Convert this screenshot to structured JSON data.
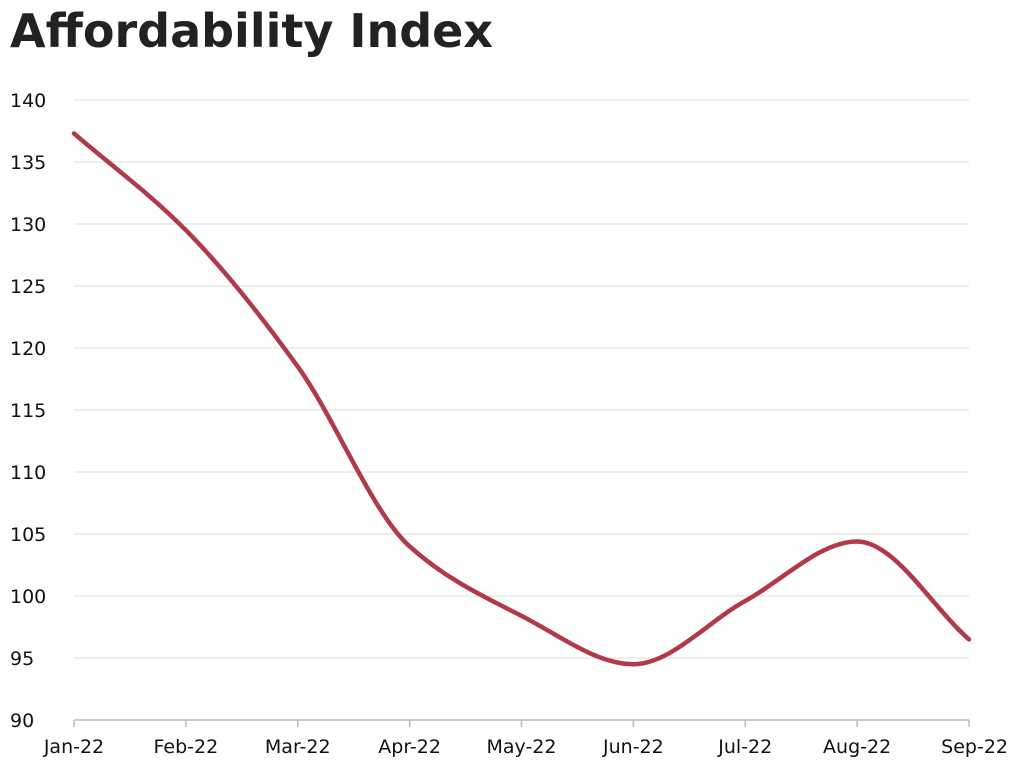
{
  "chart_data": {
    "type": "line",
    "title": "Affordability Index",
    "xlabel": "",
    "ylabel": "",
    "x": [
      "Jan-22",
      "Feb-22",
      "Mar-22",
      "Apr-22",
      "May-22",
      "Jun-22",
      "Jul-22",
      "Aug-22",
      "Sep-22"
    ],
    "series": [
      {
        "values": [
          137.3,
          129.5,
          118.5,
          104.0,
          98.4,
          94.5,
          99.6,
          104.4,
          96.5
        ]
      }
    ],
    "ylim": [
      90,
      140
    ],
    "yticks": [
      90,
      95,
      100,
      105,
      110,
      115,
      120,
      125,
      130,
      135,
      140
    ],
    "grid": true,
    "colors": {
      "line": "#b03a4a",
      "grid": "#dddddd",
      "axis": "#bbbbbb"
    }
  }
}
